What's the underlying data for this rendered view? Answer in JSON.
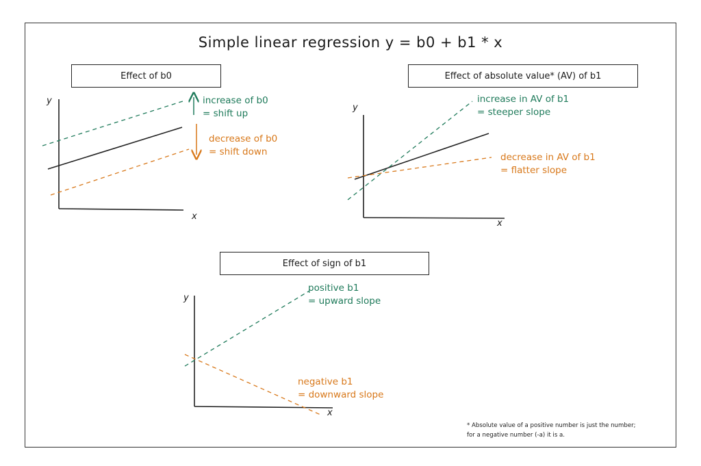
{
  "title": "Simple linear regression     y = b0 + b1 * x",
  "panels": {
    "b0": {
      "heading": "Effect of b0",
      "increase": [
        "increase of b0",
        "= shift up"
      ],
      "decrease": [
        "decrease of b0",
        "= shift down"
      ],
      "y_label": "y",
      "x_label": "x"
    },
    "b1_abs": {
      "heading": "Effect of absolute value* (AV) of b1",
      "increase": [
        "increase in AV of b1",
        "= steeper slope"
      ],
      "decrease": [
        "decrease in AV of b1",
        "= flatter slope"
      ],
      "y_label": "y",
      "x_label": "x"
    },
    "b1_sign": {
      "heading": "Effect of sign of b1",
      "positive": [
        "positive b1",
        "= upward slope"
      ],
      "negative": [
        "negative b1",
        "= downward slope"
      ],
      "y_label": "y",
      "x_label": "x"
    }
  },
  "footnote": [
    "* Absolute value of a positive number is just the number;",
    "for a negative number (-a) it is a."
  ],
  "colors": {
    "green": "#1e7a5a",
    "orange": "#d8781a",
    "line": "#222222"
  }
}
